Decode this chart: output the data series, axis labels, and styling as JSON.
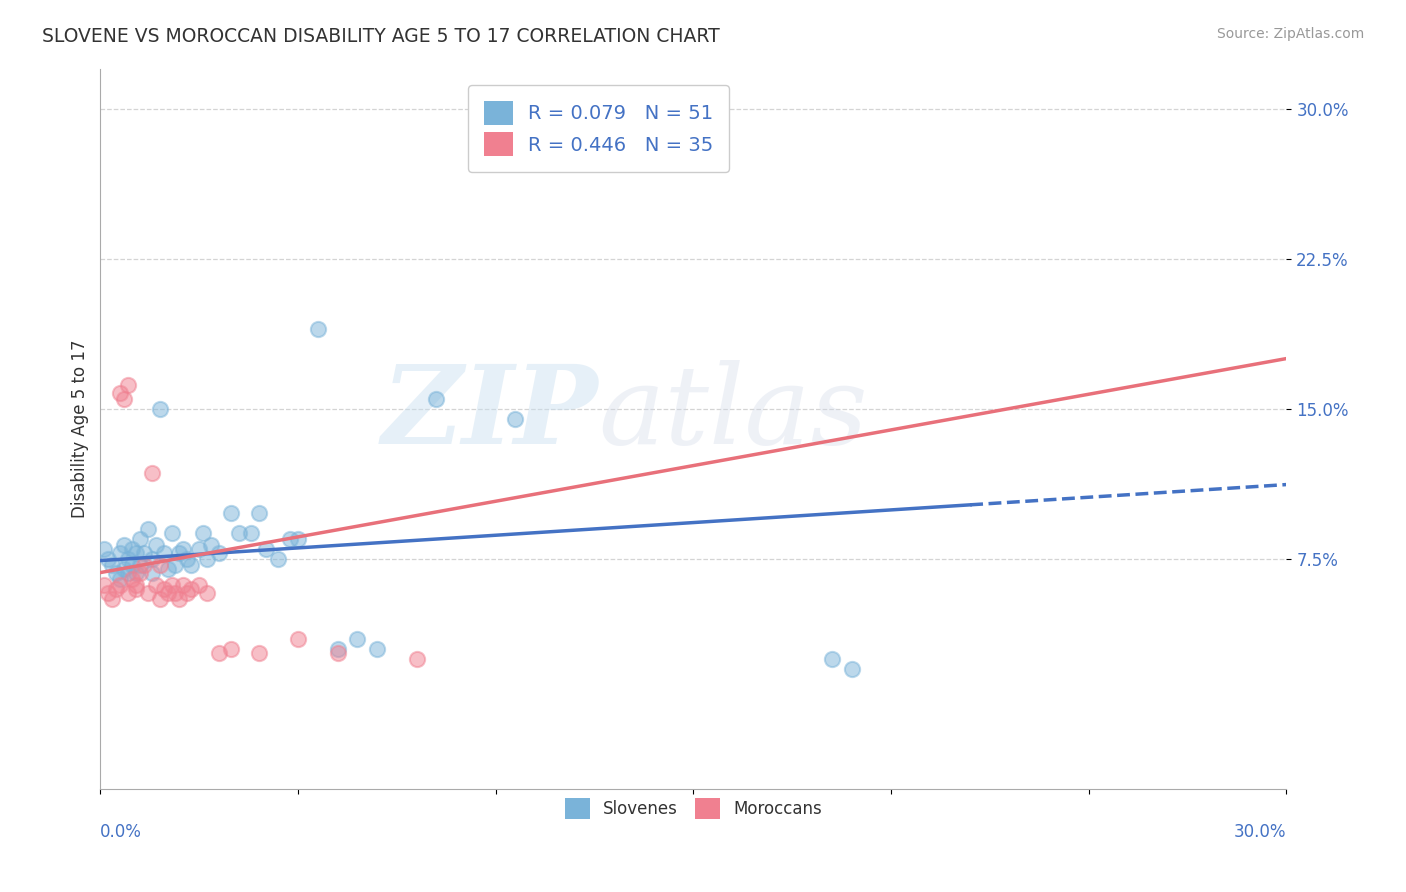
{
  "title": "SLOVENE VS MOROCCAN DISABILITY AGE 5 TO 17 CORRELATION CHART",
  "source": "Source: ZipAtlas.com",
  "ylabel": "Disability Age 5 to 17",
  "xlim": [
    0.0,
    0.3
  ],
  "ylim": [
    -0.04,
    0.32
  ],
  "ytick_vals": [
    0.075,
    0.15,
    0.225,
    0.3
  ],
  "ytick_labels": [
    "7.5%",
    "15.0%",
    "22.5%",
    "30.0%"
  ],
  "slovene_color": "#7ab3d9",
  "moroccan_color": "#f08090",
  "slovene_line_color": "#4472c4",
  "moroccan_line_color": "#e8707a",
  "background_color": "#ffffff",
  "grid_color": "#d0d0d0",
  "slovene_points": [
    [
      0.001,
      0.08
    ],
    [
      0.002,
      0.075
    ],
    [
      0.003,
      0.072
    ],
    [
      0.004,
      0.068
    ],
    [
      0.005,
      0.078
    ],
    [
      0.005,
      0.065
    ],
    [
      0.006,
      0.07
    ],
    [
      0.006,
      0.082
    ],
    [
      0.007,
      0.068
    ],
    [
      0.007,
      0.075
    ],
    [
      0.008,
      0.072
    ],
    [
      0.008,
      0.08
    ],
    [
      0.009,
      0.078
    ],
    [
      0.009,
      0.068
    ],
    [
      0.01,
      0.072
    ],
    [
      0.01,
      0.085
    ],
    [
      0.011,
      0.078
    ],
    [
      0.012,
      0.09
    ],
    [
      0.013,
      0.068
    ],
    [
      0.013,
      0.075
    ],
    [
      0.014,
      0.082
    ],
    [
      0.015,
      0.15
    ],
    [
      0.016,
      0.078
    ],
    [
      0.017,
      0.07
    ],
    [
      0.018,
      0.088
    ],
    [
      0.019,
      0.072
    ],
    [
      0.02,
      0.078
    ],
    [
      0.021,
      0.08
    ],
    [
      0.022,
      0.075
    ],
    [
      0.023,
      0.072
    ],
    [
      0.025,
      0.08
    ],
    [
      0.026,
      0.088
    ],
    [
      0.027,
      0.075
    ],
    [
      0.028,
      0.082
    ],
    [
      0.03,
      0.078
    ],
    [
      0.033,
      0.098
    ],
    [
      0.035,
      0.088
    ],
    [
      0.038,
      0.088
    ],
    [
      0.04,
      0.098
    ],
    [
      0.042,
      0.08
    ],
    [
      0.045,
      0.075
    ],
    [
      0.048,
      0.085
    ],
    [
      0.05,
      0.085
    ],
    [
      0.055,
      0.19
    ],
    [
      0.06,
      0.03
    ],
    [
      0.065,
      0.035
    ],
    [
      0.07,
      0.03
    ],
    [
      0.085,
      0.155
    ],
    [
      0.105,
      0.145
    ],
    [
      0.185,
      0.025
    ],
    [
      0.19,
      0.02
    ]
  ],
  "moroccan_points": [
    [
      0.001,
      0.062
    ],
    [
      0.002,
      0.058
    ],
    [
      0.003,
      0.055
    ],
    [
      0.004,
      0.06
    ],
    [
      0.005,
      0.062
    ],
    [
      0.005,
      0.158
    ],
    [
      0.006,
      0.155
    ],
    [
      0.007,
      0.162
    ],
    [
      0.007,
      0.058
    ],
    [
      0.008,
      0.065
    ],
    [
      0.009,
      0.06
    ],
    [
      0.009,
      0.062
    ],
    [
      0.01,
      0.068
    ],
    [
      0.011,
      0.072
    ],
    [
      0.012,
      0.058
    ],
    [
      0.013,
      0.118
    ],
    [
      0.014,
      0.062
    ],
    [
      0.015,
      0.072
    ],
    [
      0.015,
      0.055
    ],
    [
      0.016,
      0.06
    ],
    [
      0.017,
      0.058
    ],
    [
      0.018,
      0.062
    ],
    [
      0.019,
      0.058
    ],
    [
      0.02,
      0.055
    ],
    [
      0.021,
      0.062
    ],
    [
      0.022,
      0.058
    ],
    [
      0.023,
      0.06
    ],
    [
      0.025,
      0.062
    ],
    [
      0.027,
      0.058
    ],
    [
      0.03,
      0.028
    ],
    [
      0.033,
      0.03
    ],
    [
      0.04,
      0.028
    ],
    [
      0.05,
      0.035
    ],
    [
      0.06,
      0.028
    ],
    [
      0.08,
      0.025
    ]
  ]
}
